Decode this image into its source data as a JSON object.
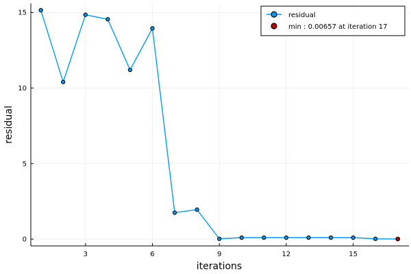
{
  "chart_data": {
    "type": "line",
    "title": "",
    "xlabel": "iterations",
    "ylabel": "residual",
    "xlim": [
      0.55,
      17.5
    ],
    "ylim": [
      -0.45,
      15.6
    ],
    "xticks": [
      3,
      6,
      9,
      12,
      15
    ],
    "yticks": [
      0,
      5,
      10,
      15
    ],
    "grid": true,
    "legend_position": "top-right",
    "series": [
      {
        "name": "residual",
        "color": "#009af9",
        "marker": "circle",
        "x": [
          1,
          2,
          3,
          4,
          5,
          6,
          7,
          8,
          9,
          10,
          11,
          12,
          13,
          14,
          15,
          16,
          17
        ],
        "y": [
          15.15,
          10.4,
          14.85,
          14.55,
          11.2,
          13.95,
          1.75,
          1.95,
          0.02,
          0.1,
          0.1,
          0.1,
          0.1,
          0.1,
          0.1,
          0.02,
          0.00657
        ]
      },
      {
        "name": "min : 0.00657 at iteration 17",
        "color": "#e26f46",
        "marker": "circle",
        "x": [
          17
        ],
        "y": [
          0.00657
        ]
      }
    ]
  }
}
